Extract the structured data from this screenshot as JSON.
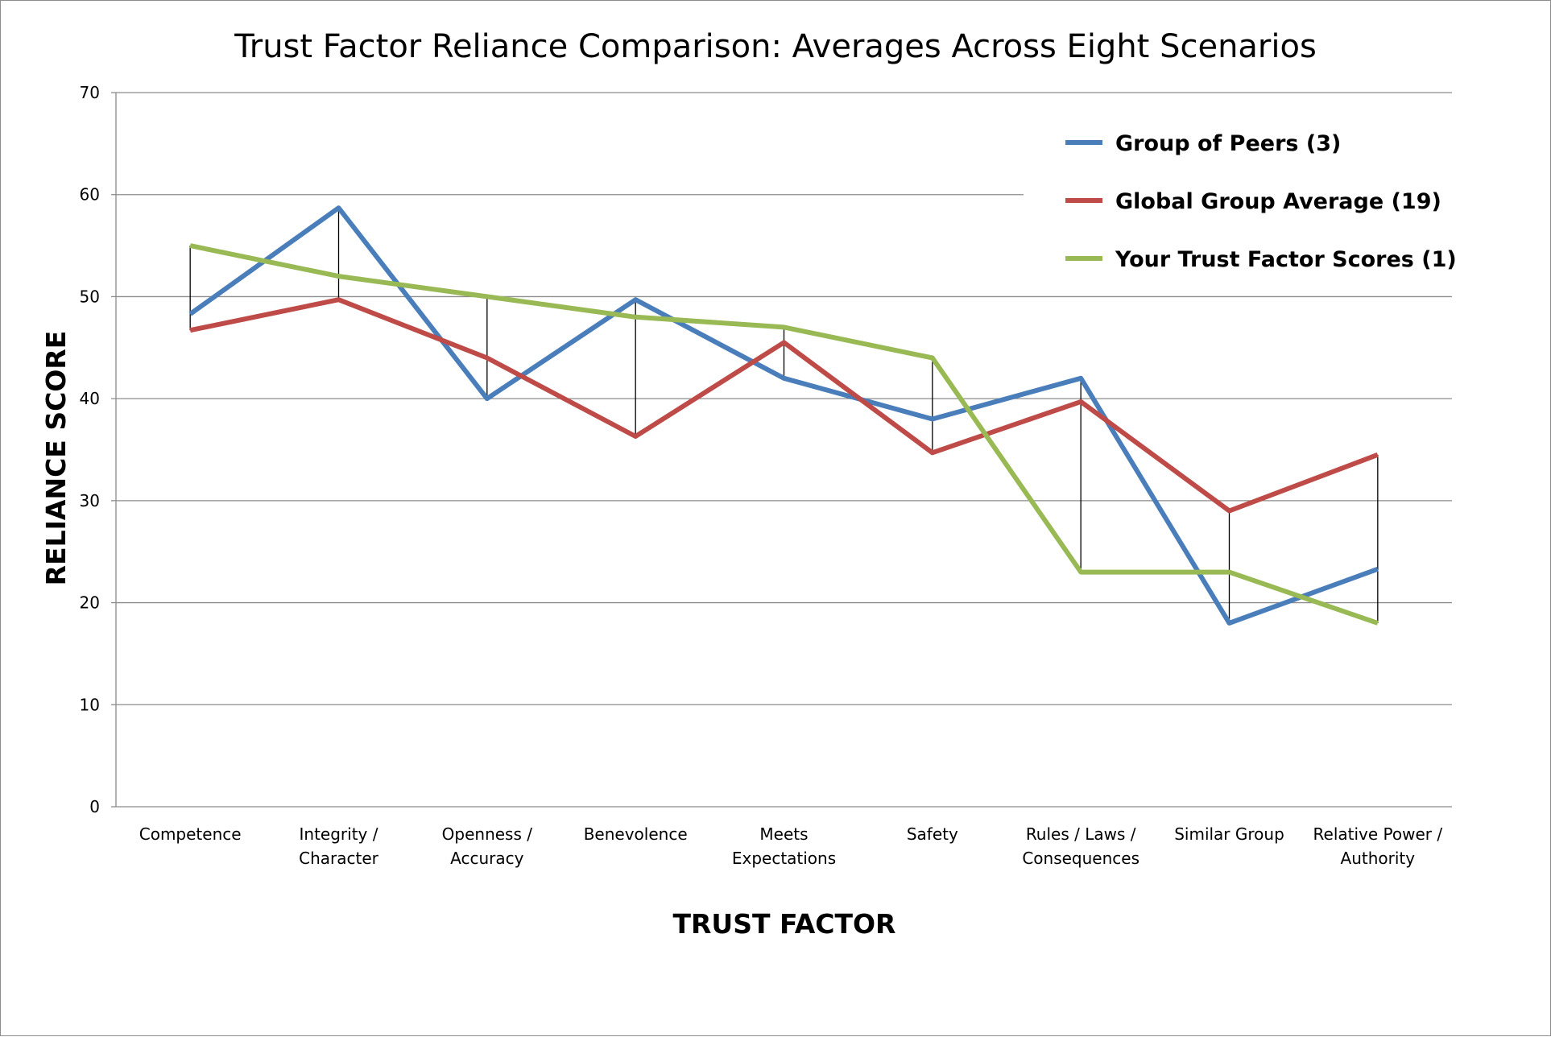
{
  "chart_data": {
    "type": "line",
    "title": "Trust Factor Reliance Comparison: Averages Across Eight Scenarios",
    "xlabel": "TRUST FACTOR",
    "ylabel": "RELIANCE SCORE",
    "ylim": [
      0,
      70
    ],
    "yticks": [
      0,
      10,
      20,
      30,
      40,
      50,
      60,
      70
    ],
    "grid": true,
    "legend_position": "top-right",
    "drop_lines": true,
    "categories": [
      [
        "Competence"
      ],
      [
        "Integrity /",
        "Character"
      ],
      [
        "Openness /",
        "Accuracy"
      ],
      [
        "Benevolence"
      ],
      [
        "Meets",
        "Expectations"
      ],
      [
        "Safety"
      ],
      [
        "Rules / Laws /",
        "Consequences"
      ],
      [
        "Similar Group"
      ],
      [
        "Relative Power /",
        "Authority"
      ]
    ],
    "series": [
      {
        "name": "Group of Peers (3)",
        "color": "#4a7ebb",
        "values": [
          48.3,
          58.7,
          40,
          49.7,
          42,
          38,
          42,
          18,
          23.3
        ]
      },
      {
        "name": "Global Group Average (19)",
        "color": "#be4b48",
        "values": [
          46.7,
          49.7,
          44,
          36.3,
          45.5,
          34.7,
          39.7,
          29,
          34.5
        ]
      },
      {
        "name": "Your Trust Factor Scores (1)",
        "color": "#98b954",
        "values": [
          55,
          52,
          50,
          48,
          47,
          44,
          23,
          23,
          18
        ]
      }
    ]
  }
}
